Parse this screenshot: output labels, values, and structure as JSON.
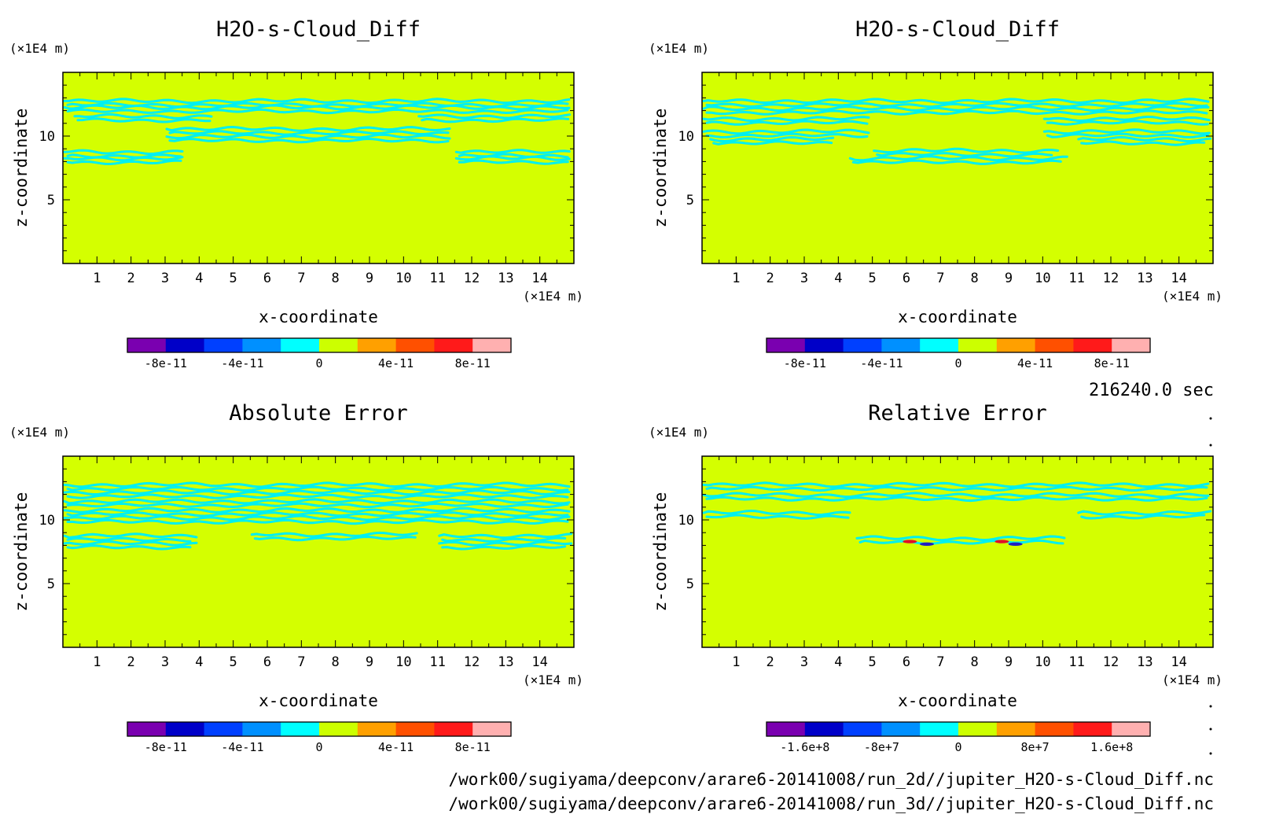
{
  "figure": {
    "time_label": "216240.0 sec",
    "file_paths": [
      "/work00/sugiyama/deepconv/arare6-20141008/run_2d//jupiter_H2O-s-Cloud_Diff.nc",
      "/work00/sugiyama/deepconv/arare6-20141008/run_3d//jupiter_H2O-s-Cloud_Diff.nc"
    ]
  },
  "colors": {
    "background_field": "#d4ff00",
    "contour": "#00f0f0",
    "contour_red": "#e0102a",
    "contour_blue": "#2020c0"
  },
  "chart_data": [
    {
      "type": "heatmap",
      "title": "H2O-s-Cloud_Diff",
      "xlabel": "x-coordinate",
      "ylabel": "z-coordinate",
      "x_unit": "(×1E4 m)",
      "y_unit": "(×1E4 m)",
      "xlim": [
        0,
        15
      ],
      "ylim": [
        0,
        15
      ],
      "x_ticks": [
        1,
        2,
        3,
        4,
        5,
        6,
        7,
        8,
        9,
        10,
        11,
        12,
        13,
        14
      ],
      "y_ticks": [
        5,
        10
      ],
      "colorbar": {
        "colors": [
          "#7a00b0",
          "#0000c8",
          "#0040ff",
          "#0090ff",
          "#00ffff",
          "#ccff00",
          "#ffa000",
          "#ff5000",
          "#ff1a1a",
          "#ffb0b0"
        ],
        "tick_values": [
          -8e-11,
          -4e-11,
          0,
          4e-11,
          8e-11
        ],
        "tick_labels": [
          "-8e-11",
          "-4e-11",
          "0",
          "4e-11",
          "8e-11"
        ],
        "range": [
          -1e-10,
          1e-10
        ]
      },
      "cloud_bands": [
        {
          "x0": 0.0,
          "x1": 15.0,
          "z": 12.6
        },
        {
          "x0": 0.0,
          "x1": 15.0,
          "z": 12.1
        },
        {
          "x0": 0.3,
          "x1": 4.5,
          "z": 11.4
        },
        {
          "x0": 10.4,
          "x1": 15.0,
          "z": 11.4
        },
        {
          "x0": 3.0,
          "x1": 11.5,
          "z": 10.4
        },
        {
          "x0": 3.0,
          "x1": 11.5,
          "z": 9.8
        },
        {
          "x0": 0.0,
          "x1": 3.6,
          "z": 8.6
        },
        {
          "x0": 0.0,
          "x1": 3.6,
          "z": 8.1
        },
        {
          "x0": 11.5,
          "x1": 15.0,
          "z": 8.6
        },
        {
          "x0": 11.5,
          "x1": 15.0,
          "z": 8.1
        }
      ]
    },
    {
      "type": "heatmap",
      "title": "H2O-s-Cloud_Diff",
      "xlabel": "x-coordinate",
      "ylabel": "z-coordinate",
      "x_unit": "(×1E4 m)",
      "y_unit": "(×1E4 m)",
      "xlim": [
        0,
        15
      ],
      "ylim": [
        0,
        15
      ],
      "x_ticks": [
        1,
        2,
        3,
        4,
        5,
        6,
        7,
        8,
        9,
        10,
        11,
        12,
        13,
        14
      ],
      "y_ticks": [
        5,
        10
      ],
      "colorbar": {
        "colors": [
          "#7a00b0",
          "#0000c8",
          "#0040ff",
          "#0090ff",
          "#00ffff",
          "#ccff00",
          "#ffa000",
          "#ff5000",
          "#ff1a1a",
          "#ffb0b0"
        ],
        "tick_values": [
          -8e-11,
          -4e-11,
          0,
          4e-11,
          8e-11
        ],
        "tick_labels": [
          "-8e-11",
          "-4e-11",
          "0",
          "4e-11",
          "8e-11"
        ],
        "range": [
          -1e-10,
          1e-10
        ]
      },
      "cloud_bands": [
        {
          "x0": 0.0,
          "x1": 15.0,
          "z": 12.6
        },
        {
          "x0": 0.0,
          "x1": 15.0,
          "z": 12.0
        },
        {
          "x0": 0.0,
          "x1": 5.0,
          "z": 11.2
        },
        {
          "x0": 10.0,
          "x1": 15.0,
          "z": 11.2
        },
        {
          "x0": 0.0,
          "x1": 5.0,
          "z": 10.2
        },
        {
          "x0": 10.0,
          "x1": 15.0,
          "z": 10.2
        },
        {
          "x0": 0.2,
          "x1": 4.0,
          "z": 9.6
        },
        {
          "x0": 11.0,
          "x1": 15.0,
          "z": 9.6
        },
        {
          "x0": 5.0,
          "x1": 10.5,
          "z": 8.7
        },
        {
          "x0": 4.3,
          "x1": 10.8,
          "z": 8.1
        }
      ]
    },
    {
      "type": "heatmap",
      "title": "Absolute Error",
      "xlabel": "x-coordinate",
      "ylabel": "z-coordinate",
      "x_unit": "(×1E4 m)",
      "y_unit": "(×1E4 m)",
      "xlim": [
        0,
        15
      ],
      "ylim": [
        0,
        15
      ],
      "x_ticks": [
        1,
        2,
        3,
        4,
        5,
        6,
        7,
        8,
        9,
        10,
        11,
        12,
        13,
        14
      ],
      "y_ticks": [
        5,
        10
      ],
      "colorbar": {
        "colors": [
          "#7a00b0",
          "#0000c8",
          "#0040ff",
          "#0090ff",
          "#00ffff",
          "#ccff00",
          "#ffa000",
          "#ff5000",
          "#ff1a1a",
          "#ffb0b0"
        ],
        "tick_values": [
          -8e-11,
          -4e-11,
          0,
          4e-11,
          8e-11
        ],
        "tick_labels": [
          "-8e-11",
          "-4e-11",
          "0",
          "4e-11",
          "8e-11"
        ],
        "range": [
          -1e-10,
          1e-10
        ]
      },
      "cloud_bands": [
        {
          "x0": 0.0,
          "x1": 15.0,
          "z": 12.6
        },
        {
          "x0": 0.0,
          "x1": 15.0,
          "z": 12.0
        },
        {
          "x0": 0.0,
          "x1": 15.0,
          "z": 11.3
        },
        {
          "x0": 0.0,
          "x1": 15.0,
          "z": 10.6
        },
        {
          "x0": 0.0,
          "x1": 15.0,
          "z": 10.0
        },
        {
          "x0": 0.0,
          "x1": 4.0,
          "z": 8.6
        },
        {
          "x0": 0.0,
          "x1": 4.0,
          "z": 8.0
        },
        {
          "x0": 11.0,
          "x1": 15.0,
          "z": 8.6
        },
        {
          "x0": 11.0,
          "x1": 15.0,
          "z": 8.0
        },
        {
          "x0": 5.5,
          "x1": 10.5,
          "z": 8.7
        }
      ]
    },
    {
      "type": "heatmap",
      "title": "Relative Error",
      "xlabel": "x-coordinate",
      "ylabel": "z-coordinate",
      "x_unit": "(×1E4 m)",
      "y_unit": "(×1E4 m)",
      "xlim": [
        0,
        15
      ],
      "ylim": [
        0,
        15
      ],
      "x_ticks": [
        1,
        2,
        3,
        4,
        5,
        6,
        7,
        8,
        9,
        10,
        11,
        12,
        13,
        14
      ],
      "y_ticks": [
        5,
        10
      ],
      "colorbar": {
        "colors": [
          "#7a00b0",
          "#0000c8",
          "#0040ff",
          "#0090ff",
          "#00ffff",
          "#ccff00",
          "#ffa000",
          "#ff5000",
          "#ff1a1a",
          "#ffb0b0"
        ],
        "tick_values": [
          -160000000,
          -80000000,
          0,
          80000000,
          160000000
        ],
        "tick_labels": [
          "-1.6e+8",
          "-8e+7",
          "0",
          "8e+7",
          "1.6e+8"
        ],
        "range": [
          -200000000,
          200000000
        ]
      },
      "cloud_bands": [
        {
          "x0": 0.0,
          "x1": 15.0,
          "z": 12.6
        },
        {
          "x0": 0.0,
          "x1": 15.0,
          "z": 11.8
        },
        {
          "x0": 0.0,
          "x1": 4.5,
          "z": 10.4
        },
        {
          "x0": 11.0,
          "x1": 15.0,
          "z": 10.4
        },
        {
          "x0": 4.5,
          "x1": 10.8,
          "z": 8.4
        }
      ],
      "error_marks": [
        {
          "x": 6.1,
          "z": 8.3,
          "level": "high"
        },
        {
          "x": 6.6,
          "z": 8.1,
          "level": "low"
        },
        {
          "x": 8.8,
          "z": 8.3,
          "level": "high"
        },
        {
          "x": 9.2,
          "z": 8.1,
          "level": "low"
        }
      ]
    }
  ]
}
